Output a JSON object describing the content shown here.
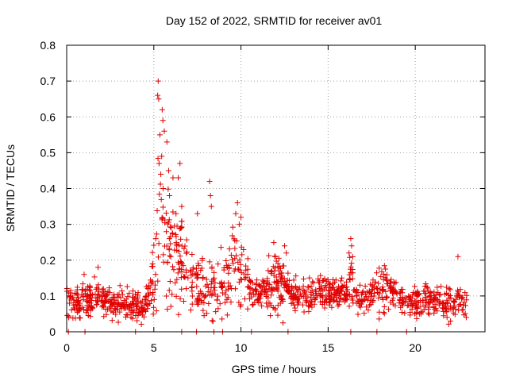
{
  "chart_data": {
    "type": "scatter",
    "title": "Day 152 of 2022, SRMTID for receiver av01",
    "xlabel": "GPS time / hours",
    "ylabel": "SRMTID / TECUs",
    "xlim": [
      0,
      24
    ],
    "ylim": [
      0,
      0.8
    ],
    "x_ticks": [
      0,
      5,
      10,
      15,
      20
    ],
    "x_tick_labels": [
      "0",
      "5",
      "10",
      "15",
      "20"
    ],
    "y_ticks": [
      0,
      0.1,
      0.2,
      0.3,
      0.4,
      0.5,
      0.6,
      0.7,
      0.8
    ],
    "y_tick_labels": [
      "0",
      "0.1",
      "0.2",
      "0.3",
      "0.4",
      "0.5",
      "0.6",
      "0.7",
      "0.8"
    ],
    "grid": true,
    "marker": "plus",
    "color": "#e00000",
    "profile": [
      [
        0.0,
        0.085
      ],
      [
        0.5,
        0.09
      ],
      [
        1.0,
        0.085
      ],
      [
        1.5,
        0.09
      ],
      [
        2.0,
        0.1
      ],
      [
        2.5,
        0.085
      ],
      [
        3.0,
        0.075
      ],
      [
        3.5,
        0.075
      ],
      [
        4.0,
        0.08
      ],
      [
        4.5,
        0.07
      ],
      [
        5.0,
        0.16
      ],
      [
        5.3,
        0.3
      ],
      [
        5.8,
        0.25
      ],
      [
        6.3,
        0.22
      ],
      [
        6.8,
        0.18
      ],
      [
        7.3,
        0.12
      ],
      [
        7.8,
        0.12
      ],
      [
        8.3,
        0.13
      ],
      [
        8.8,
        0.12
      ],
      [
        9.3,
        0.16
      ],
      [
        9.7,
        0.23
      ],
      [
        10.0,
        0.15
      ],
      [
        10.5,
        0.12
      ],
      [
        11.0,
        0.11
      ],
      [
        11.5,
        0.12
      ],
      [
        12.0,
        0.15
      ],
      [
        12.5,
        0.12
      ],
      [
        13.0,
        0.1
      ],
      [
        13.5,
        0.1
      ],
      [
        14.0,
        0.1
      ],
      [
        14.5,
        0.11
      ],
      [
        15.0,
        0.11
      ],
      [
        15.5,
        0.1
      ],
      [
        16.0,
        0.11
      ],
      [
        16.3,
        0.14
      ],
      [
        16.6,
        0.1
      ],
      [
        17.0,
        0.09
      ],
      [
        17.5,
        0.1
      ],
      [
        18.0,
        0.13
      ],
      [
        18.5,
        0.12
      ],
      [
        19.0,
        0.1
      ],
      [
        19.5,
        0.08
      ],
      [
        20.0,
        0.08
      ],
      [
        20.5,
        0.09
      ],
      [
        21.0,
        0.09
      ],
      [
        21.5,
        0.08
      ],
      [
        22.0,
        0.07
      ],
      [
        22.5,
        0.09
      ],
      [
        23.0,
        0.07
      ]
    ],
    "peaks": [
      [
        5.25,
        0.7
      ],
      [
        5.22,
        0.66
      ],
      [
        5.28,
        0.65
      ],
      [
        5.48,
        0.62
      ],
      [
        5.52,
        0.59
      ],
      [
        5.6,
        0.56
      ],
      [
        5.35,
        0.55
      ],
      [
        5.75,
        0.53
      ],
      [
        5.3,
        0.47
      ],
      [
        5.4,
        0.44
      ],
      [
        5.85,
        0.45
      ],
      [
        6.1,
        0.43
      ],
      [
        6.5,
        0.47
      ],
      [
        6.4,
        0.43
      ],
      [
        5.9,
        0.38
      ],
      [
        6.6,
        0.35
      ],
      [
        8.2,
        0.42
      ],
      [
        8.25,
        0.38
      ],
      [
        8.3,
        0.35
      ],
      [
        7.5,
        0.33
      ],
      [
        9.8,
        0.36
      ],
      [
        9.7,
        0.33
      ],
      [
        10.0,
        0.32
      ],
      [
        9.9,
        0.3
      ],
      [
        16.3,
        0.26
      ],
      [
        16.35,
        0.24
      ],
      [
        16.2,
        0.22
      ],
      [
        22.45,
        0.21
      ],
      [
        12.5,
        0.24
      ],
      [
        12.6,
        0.22
      ],
      [
        1.8,
        0.18
      ],
      [
        1.0,
        0.16
      ]
    ],
    "ticks_at_zero": [
      0.1,
      1.05,
      3.95,
      6.6,
      7.45,
      8.45,
      8.95,
      10.6,
      12.7,
      16.3,
      17.8,
      19.5
    ],
    "point_count": 1300,
    "seed": 152
  }
}
